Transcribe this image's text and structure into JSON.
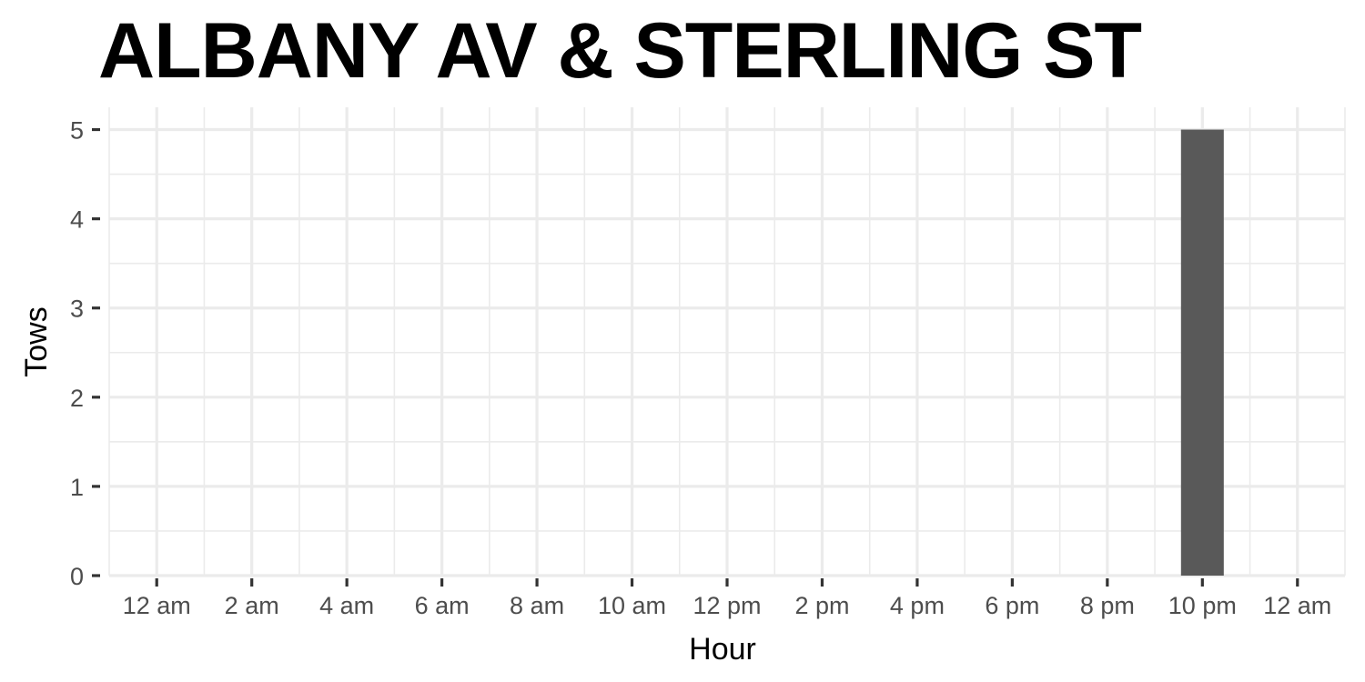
{
  "chart_data": {
    "type": "bar",
    "title": "ALBANY AV & STERLING ST",
    "xlabel": "Hour",
    "ylabel": "Tows",
    "x_ticks": [
      {
        "hour": 0,
        "label": "12 am"
      },
      {
        "hour": 2,
        "label": "2 am"
      },
      {
        "hour": 4,
        "label": "4 am"
      },
      {
        "hour": 6,
        "label": "6 am"
      },
      {
        "hour": 8,
        "label": "8 am"
      },
      {
        "hour": 10,
        "label": "10 am"
      },
      {
        "hour": 12,
        "label": "12 pm"
      },
      {
        "hour": 14,
        "label": "2 pm"
      },
      {
        "hour": 16,
        "label": "4 pm"
      },
      {
        "hour": 18,
        "label": "6 pm"
      },
      {
        "hour": 20,
        "label": "8 pm"
      },
      {
        "hour": 22,
        "label": "10 pm"
      },
      {
        "hour": 24,
        "label": "12 am"
      }
    ],
    "y_ticks": [
      0,
      1,
      2,
      3,
      4,
      5
    ],
    "xlim": [
      -1,
      25
    ],
    "ylim": [
      0,
      5.25
    ],
    "bars": [
      {
        "hour": 22,
        "value": 5
      }
    ],
    "bar_color": "#595959",
    "grid": true,
    "grid_color": "#ebebeb"
  }
}
